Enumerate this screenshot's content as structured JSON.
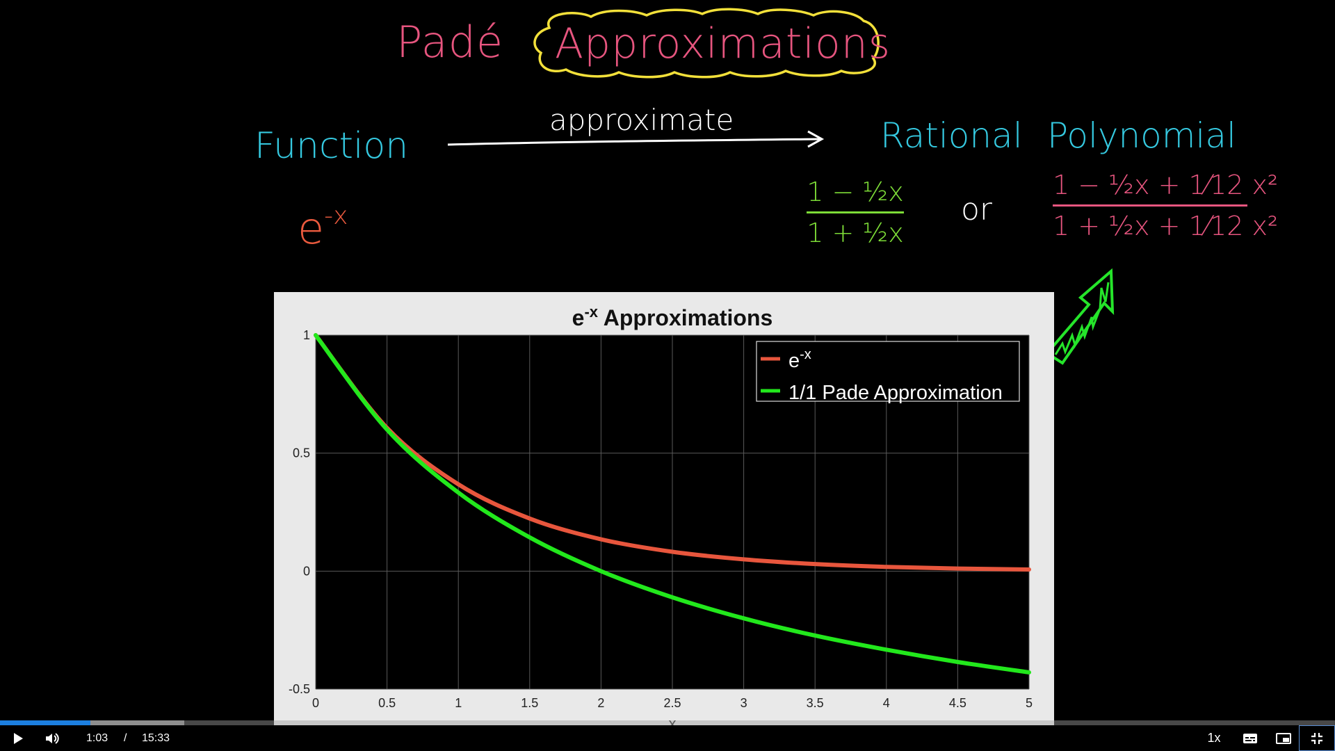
{
  "board": {
    "title_left": "Padé",
    "title_boxed": "Approximations",
    "function_label": "Function",
    "arrow_label": "approximate",
    "rational_label": "Rational",
    "polynomial_label": "Polynomial",
    "expr_base": "e",
    "expr_exp": "-x",
    "or_label": "or",
    "frac1_num": "1 − ½x",
    "frac1_den": "1 + ½x",
    "frac2_num": "1 − ½x + 1⁄12 x²",
    "frac2_den": "1 + ½x + 1⁄12 x²",
    "colors": {
      "pink": "#e7557f",
      "cyan": "#35c9e0",
      "green": "#7ddc37",
      "orange": "#ea5a3e",
      "yellow": "#f2e03a",
      "arrow_green": "#25e52a"
    }
  },
  "chart_data": {
    "type": "line",
    "title_base": "e",
    "title_sup": "-x",
    "title_rest": " Approximations",
    "xlabel": "x",
    "ylabel": "",
    "xlim": [
      0,
      5
    ],
    "ylim": [
      -0.5,
      1
    ],
    "xticks": [
      "0",
      "0.5",
      "1",
      "1.5",
      "2",
      "2.5",
      "3",
      "3.5",
      "4",
      "4.5",
      "5"
    ],
    "yticks": [
      "-0.5",
      "0",
      "0.5",
      "1"
    ],
    "grid": true,
    "legend_position": "top-right",
    "series": [
      {
        "name": "e^-x",
        "legend_base": "e",
        "legend_sup": "-x",
        "color": "#e8563d",
        "x": [
          0,
          0.5,
          1,
          1.5,
          2,
          2.5,
          3,
          3.5,
          4,
          4.5,
          5
        ],
        "y": [
          1,
          0.607,
          0.368,
          0.223,
          0.135,
          0.082,
          0.05,
          0.03,
          0.018,
          0.011,
          0.007
        ]
      },
      {
        "name": "1/1 Pade Approximation",
        "legend_base": "1/1 Pade Approximation",
        "legend_sup": "",
        "color": "#22e81c",
        "x": [
          0,
          0.5,
          1,
          1.5,
          2,
          2.5,
          3,
          3.5,
          4,
          4.5,
          5
        ],
        "y": [
          1,
          0.6,
          0.333,
          0.143,
          0,
          -0.111,
          -0.2,
          -0.273,
          -0.333,
          -0.385,
          -0.429
        ]
      }
    ]
  },
  "player": {
    "current_time": "1:03",
    "separator": "/",
    "total_time": "15:33",
    "speed": "1x",
    "progress": 0.0675,
    "buffered": 0.138
  }
}
